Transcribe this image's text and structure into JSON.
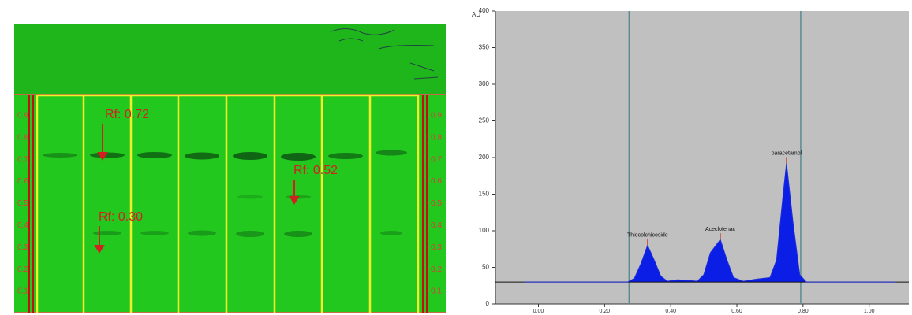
{
  "plate": {
    "rf_scale": [
      0.9,
      0.8,
      0.7,
      0.6,
      0.5,
      0.4,
      0.3,
      0.2,
      0.1
    ],
    "annotations": [
      "Rf: 0.72",
      "Rf: 0.52",
      "Rf: 0.30"
    ]
  },
  "chart_data": {
    "type": "line",
    "y_label": "AU",
    "x": [
      -0.04,
      0.27,
      0.29,
      0.31,
      0.33,
      0.35,
      0.37,
      0.39,
      0.42,
      0.46,
      0.48,
      0.5,
      0.52,
      0.55,
      0.57,
      0.59,
      0.62,
      0.66,
      0.7,
      0.72,
      0.74,
      0.75,
      0.77,
      0.79,
      0.81,
      1.08
    ],
    "values": [
      30,
      30,
      35,
      55,
      80,
      60,
      38,
      31,
      33,
      32,
      31,
      40,
      70,
      88,
      60,
      36,
      31,
      34,
      36,
      60,
      150,
      192,
      110,
      40,
      30,
      30
    ],
    "color": "#1f2fd8",
    "fill": "#0a1ee6",
    "background": "#c0c0c0",
    "baseline": 30,
    "vlines": [
      0.274,
      0.793
    ],
    "annotations": [
      {
        "text": "Thiocolchicoside",
        "x": 0.33,
        "y": 80
      },
      {
        "text": "Aceclofenac",
        "x": 0.55,
        "y": 88
      },
      {
        "text": "paracetamol",
        "x": 0.75,
        "y": 192
      }
    ],
    "xlim": [
      -0.13,
      1.12
    ],
    "ylim": [
      0,
      400
    ],
    "xticks": [
      {
        "value": 0,
        "label": "0.00"
      },
      {
        "value": 0.2,
        "label": "0.20"
      },
      {
        "value": 0.4,
        "label": "0.40"
      },
      {
        "value": 0.6,
        "label": "0.60"
      },
      {
        "value": 0.8,
        "label": "0.80"
      },
      {
        "value": 1,
        "label": "1.00"
      }
    ],
    "yticks": [
      0,
      50,
      100,
      150,
      200,
      250,
      300,
      350,
      400
    ]
  }
}
